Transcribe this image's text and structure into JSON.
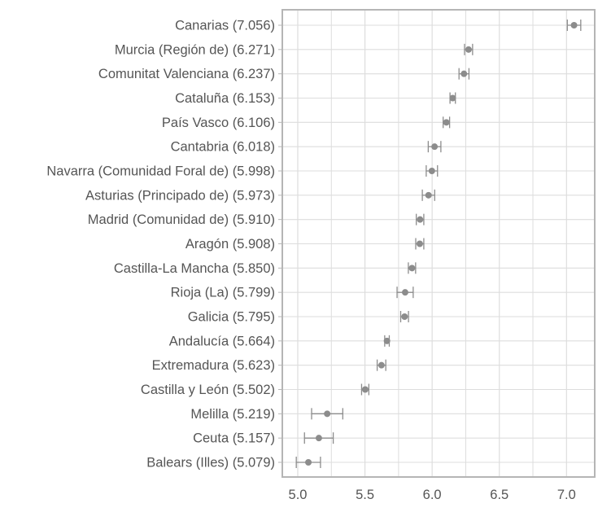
{
  "chart_data": {
    "type": "scatter",
    "orientation": "horizontal",
    "categories": [
      "Canarias (7.056)",
      "Murcia (Región de) (6.271)",
      "Comunitat Valenciana (6.237)",
      "Cataluña (6.153)",
      "País Vasco (6.106)",
      "Cantabria (6.018)",
      "Navarra (Comunidad Foral de) (5.998)",
      "Asturias (Principado de) (5.973)",
      "Madrid (Comunidad de) (5.910)",
      "Aragón (5.908)",
      "Castilla-La Mancha (5.850)",
      "Rioja (La) (5.799)",
      "Galicia (5.795)",
      "Andalucía (5.664)",
      "Extremadura (5.623)",
      "Castilla y León (5.502)",
      "Melilla (5.219)",
      "Ceuta (5.157)",
      "Balears (Illes) (5.079)"
    ],
    "values": [
      7.056,
      6.271,
      6.237,
      6.153,
      6.106,
      6.018,
      5.998,
      5.973,
      5.91,
      5.908,
      5.85,
      5.799,
      5.795,
      5.664,
      5.623,
      5.502,
      5.219,
      5.157,
      5.079
    ],
    "error": [
      0.05,
      0.03,
      0.037,
      0.02,
      0.024,
      0.047,
      0.042,
      0.046,
      0.028,
      0.03,
      0.027,
      0.06,
      0.029,
      0.017,
      0.032,
      0.027,
      0.116,
      0.107,
      0.09
    ],
    "xticks": [
      "5.0",
      "5.5",
      "6.0",
      "6.5",
      "7.0"
    ],
    "xlim": [
      4.885,
      7.21
    ],
    "grid": true,
    "colors": {
      "point": "#8c8c8c",
      "grid": "#dddddd",
      "frame": "#b5b5b5",
      "text": "#555555"
    }
  }
}
